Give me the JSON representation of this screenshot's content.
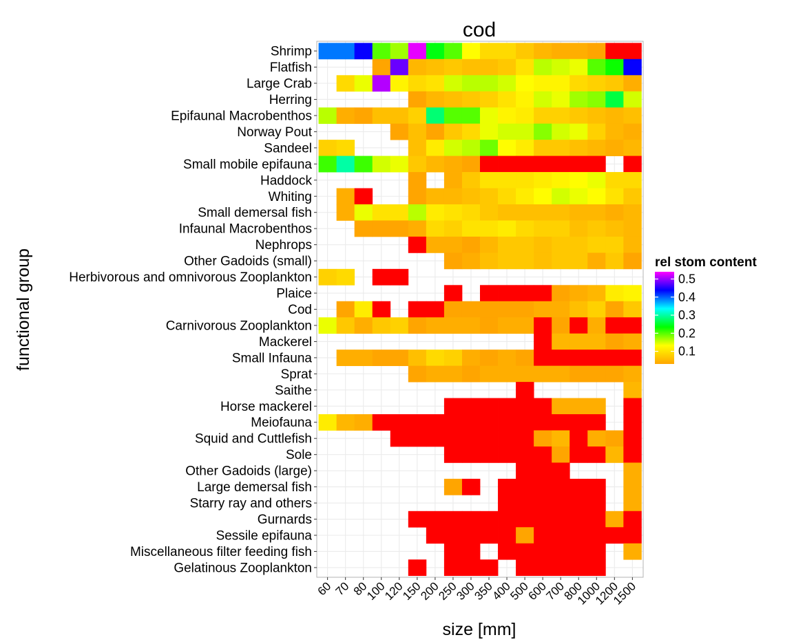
{
  "chart_data": {
    "type": "heatmap",
    "title": "cod",
    "xlabel": "size [mm]",
    "ylabel": "functional group",
    "x": [
      "60",
      "70",
      "80",
      "100",
      "120",
      "150",
      "200",
      "250",
      "300",
      "350",
      "400",
      "500",
      "600",
      "700",
      "800",
      "1000",
      "1200",
      "1500"
    ],
    "y": [
      "Shrimp",
      "Flatfish",
      "Large Crab",
      "Herring",
      "Epifaunal Macrobenthos",
      "Norway Pout",
      "Sandeel",
      "Small mobile epifauna",
      "Haddock",
      "Whiting",
      "Small demersal fish",
      "Infaunal Macrobenthos",
      "Nephrops",
      "Other Gadoids (small)",
      "Herbivorous and omnivorous Zooplankton",
      "Plaice",
      "Cod",
      "Carnivorous Zooplankton",
      "Mackerel",
      "Small Infauna",
      "Sprat",
      "Saithe",
      "Horse mackerel",
      "Meiofauna",
      "Squid and Cuttlefish",
      "Sole",
      "Other Gadoids (large)",
      "Large demersal fish",
      "Starry ray and others",
      "Gurnards",
      "Sessile epifauna",
      "Miscellaneous filter feeding fish",
      "Gelatinous Zooplankton"
    ],
    "values": [
      [
        0.39,
        0.39,
        0.44,
        0.2,
        0.17,
        0.53,
        0.24,
        0.2,
        0.13,
        0.09,
        0.09,
        0.07,
        0.05,
        0.04,
        0.04,
        0.03,
        0.02,
        0.02
      ],
      [
        null,
        null,
        null,
        0.03,
        0.48,
        0.05,
        0.06,
        0.07,
        0.06,
        0.06,
        0.07,
        0.1,
        0.16,
        0.15,
        0.14,
        0.2,
        0.23,
        0.44
      ],
      [
        null,
        0.09,
        0.14,
        0.51,
        0.12,
        0.09,
        0.1,
        0.15,
        0.16,
        0.16,
        0.15,
        0.13,
        0.12,
        0.12,
        0.09,
        0.08,
        0.07,
        0.04
      ],
      [
        null,
        null,
        null,
        null,
        null,
        0.03,
        0.05,
        0.06,
        0.07,
        0.08,
        0.1,
        0.12,
        0.15,
        0.14,
        0.17,
        0.18,
        0.26,
        0.15
      ],
      [
        0.16,
        0.04,
        0.03,
        0.06,
        0.06,
        0.08,
        0.28,
        0.2,
        0.2,
        0.14,
        0.12,
        0.11,
        0.08,
        0.08,
        0.07,
        0.06,
        0.05,
        0.06
      ],
      [
        null,
        null,
        null,
        null,
        0.03,
        0.06,
        0.03,
        0.07,
        0.09,
        0.14,
        0.15,
        0.15,
        0.18,
        0.15,
        0.14,
        0.08,
        0.05,
        0.04
      ],
      [
        0.08,
        0.09,
        null,
        null,
        null,
        0.06,
        0.11,
        0.15,
        0.16,
        0.19,
        0.13,
        0.11,
        0.07,
        0.07,
        0.06,
        0.05,
        0.04,
        0.05
      ],
      [
        0.21,
        0.3,
        0.21,
        0.15,
        0.14,
        0.07,
        0.05,
        0.04,
        0.03,
        0.02,
        0.02,
        0.02,
        0.01,
        0.01,
        0.01,
        0.01,
        null,
        0.01
      ],
      [
        null,
        null,
        null,
        null,
        null,
        0.03,
        null,
        0.04,
        0.07,
        0.1,
        0.1,
        0.1,
        0.11,
        0.12,
        0.13,
        0.14,
        0.09,
        0.09
      ],
      [
        null,
        0.04,
        0.02,
        null,
        null,
        0.03,
        0.05,
        0.05,
        0.06,
        0.07,
        0.09,
        0.11,
        0.13,
        0.15,
        0.14,
        0.13,
        0.1,
        0.07
      ],
      [
        null,
        0.04,
        0.14,
        0.1,
        0.1,
        0.16,
        0.11,
        0.1,
        0.09,
        0.07,
        0.06,
        0.06,
        0.06,
        0.06,
        0.05,
        0.05,
        0.04,
        0.05
      ],
      [
        null,
        null,
        0.03,
        0.03,
        0.03,
        0.04,
        0.09,
        0.08,
        0.1,
        0.1,
        0.11,
        0.09,
        0.08,
        0.08,
        0.06,
        0.07,
        0.06,
        0.05
      ],
      [
        null,
        null,
        null,
        null,
        null,
        0.02,
        0.04,
        0.04,
        0.03,
        0.05,
        0.07,
        0.07,
        0.06,
        0.07,
        0.07,
        0.08,
        0.08,
        0.05
      ],
      [
        null,
        null,
        null,
        null,
        null,
        null,
        null,
        0.03,
        0.04,
        0.06,
        0.07,
        0.07,
        0.06,
        0.07,
        0.07,
        0.04,
        0.07,
        0.03
      ],
      [
        0.08,
        0.09,
        null,
        0.02,
        0.02,
        null,
        null,
        null,
        null,
        null,
        null,
        null,
        null,
        null,
        null,
        null,
        null,
        null
      ],
      [
        null,
        null,
        null,
        null,
        null,
        null,
        null,
        0.02,
        null,
        0.02,
        0.02,
        0.02,
        0.02,
        0.03,
        0.04,
        0.05,
        0.11,
        0.12
      ],
      [
        null,
        0.03,
        0.11,
        0.02,
        null,
        0.02,
        0.02,
        0.03,
        0.03,
        0.03,
        0.03,
        0.03,
        0.04,
        0.04,
        0.06,
        0.08,
        0.03,
        0.07
      ],
      [
        0.14,
        0.07,
        0.04,
        0.07,
        0.08,
        0.03,
        0.04,
        0.04,
        0.04,
        0.03,
        0.04,
        0.04,
        0.01,
        0.03,
        0.01,
        0.04,
        0.01,
        0.02
      ],
      [
        null,
        null,
        null,
        null,
        null,
        null,
        null,
        null,
        null,
        null,
        null,
        null,
        0.01,
        0.05,
        0.05,
        0.05,
        0.03,
        0.04
      ],
      [
        null,
        0.04,
        0.04,
        0.03,
        0.03,
        0.06,
        0.09,
        0.08,
        0.04,
        0.03,
        0.04,
        0.03,
        0.02,
        0.01,
        0.01,
        0.01,
        0.01,
        0.01
      ],
      [
        null,
        null,
        null,
        null,
        null,
        0.03,
        0.04,
        0.04,
        0.03,
        0.04,
        0.04,
        0.04,
        0.04,
        0.04,
        0.03,
        0.03,
        0.03,
        0.04
      ],
      [
        null,
        null,
        null,
        null,
        null,
        null,
        null,
        null,
        null,
        null,
        null,
        0.01,
        null,
        null,
        null,
        null,
        null,
        0.05
      ],
      [
        null,
        null,
        null,
        null,
        null,
        null,
        null,
        0.01,
        0.01,
        0.02,
        0.02,
        0.02,
        0.02,
        0.04,
        0.04,
        0.04,
        null,
        0.01
      ],
      [
        0.11,
        0.05,
        0.04,
        0.01,
        0.01,
        0.01,
        0.01,
        0.01,
        0.01,
        0.01,
        0.01,
        0.01,
        0.01,
        0.01,
        0.01,
        0.01,
        null,
        0.01
      ],
      [
        null,
        null,
        null,
        null,
        0.02,
        0.01,
        0.01,
        0.02,
        0.02,
        0.02,
        0.02,
        0.02,
        0.03,
        0.05,
        0.02,
        0.04,
        0.03,
        0.01
      ],
      [
        null,
        null,
        null,
        null,
        null,
        null,
        null,
        0.01,
        0.02,
        0.02,
        0.02,
        0.02,
        0.02,
        0.03,
        0.02,
        0.01,
        0.05,
        0.02
      ],
      [
        null,
        null,
        null,
        null,
        null,
        null,
        null,
        null,
        null,
        null,
        null,
        0.01,
        0.01,
        0.01,
        null,
        null,
        null,
        0.04
      ],
      [
        null,
        null,
        null,
        null,
        null,
        null,
        null,
        0.03,
        0.02,
        null,
        0.01,
        0.01,
        0.01,
        0.02,
        0.01,
        0.01,
        null,
        0.04
      ],
      [
        null,
        null,
        null,
        null,
        null,
        null,
        null,
        null,
        null,
        null,
        0.01,
        0.01,
        0.02,
        0.02,
        0.01,
        0.01,
        null,
        0.04
      ],
      [
        null,
        null,
        null,
        null,
        null,
        0.01,
        0.01,
        0.01,
        0.01,
        0.02,
        0.01,
        0.02,
        0.01,
        0.02,
        0.01,
        0.02,
        0.04,
        0.02
      ],
      [
        null,
        null,
        null,
        null,
        null,
        null,
        0.01,
        0.01,
        0.01,
        0.02,
        0.01,
        0.03,
        0.01,
        0.01,
        0.01,
        0.01,
        0.01,
        0.01
      ],
      [
        null,
        null,
        null,
        null,
        null,
        null,
        null,
        0.01,
        0.01,
        null,
        0.02,
        0.02,
        0.01,
        0.02,
        0.01,
        0.01,
        null,
        0.04
      ],
      [
        null,
        null,
        null,
        null,
        null,
        0.02,
        null,
        0.01,
        0.01,
        0.01,
        null,
        0.01,
        0.01,
        0.01,
        0.01,
        0.01,
        null,
        null
      ]
    ],
    "legend": {
      "title": "rel stom content",
      "ticks": [
        0.1,
        0.2,
        0.3,
        0.4,
        0.5
      ],
      "range": [
        0.03,
        0.54
      ],
      "position": "right",
      "colors": [
        "#ffa500",
        "#ffff00",
        "#00ff00",
        "#00ffff",
        "#0000ff",
        "#ff00ff"
      ],
      "below_range_color": "#ff0000"
    },
    "grid": true,
    "panel_border_color": "#b3b3b3",
    "grid_color": "#ebebeb"
  }
}
